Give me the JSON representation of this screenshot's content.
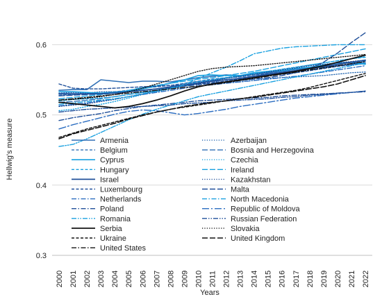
{
  "chart_data": {
    "type": "line",
    "title": "",
    "xlabel": "Years",
    "ylabel": "Hellwig's measure",
    "ylim": [
      0.3,
      0.63
    ],
    "yticks": [
      "0.3",
      "0.4",
      "0.5",
      "0.6"
    ],
    "ytick_values": [
      0.3,
      0.4,
      0.5,
      0.6
    ],
    "grid": "horizontal",
    "legend_position": "inside-bottom-left",
    "x": [
      "2000",
      "2001",
      "2002",
      "2003",
      "2004",
      "2005",
      "2006",
      "2007",
      "2008",
      "2009",
      "2010",
      "2011",
      "2012",
      "2013",
      "2014",
      "2015",
      "2016",
      "2017",
      "2018",
      "2019",
      "2020",
      "2021",
      "2022"
    ],
    "series": [
      {
        "name": "Armenia",
        "color": "#2f6fb5",
        "dash": "solid",
        "width": 1.6,
        "values": [
          0.535,
          0.536,
          0.536,
          0.55,
          0.548,
          0.546,
          0.548,
          0.548,
          0.547,
          0.55,
          0.553,
          0.555,
          0.557,
          0.556,
          0.558,
          0.56,
          0.562,
          0.565,
          0.567,
          0.568,
          0.57,
          0.572,
          0.574
        ]
      },
      {
        "name": "Azerbaijan",
        "color": "#2f6fb5",
        "dash": "dot",
        "width": 1.4,
        "values": [
          0.531,
          0.532,
          0.531,
          0.533,
          0.533,
          0.534,
          0.535,
          0.537,
          0.539,
          0.544,
          0.548,
          0.548,
          0.546,
          0.547,
          0.549,
          0.552,
          0.553,
          0.554,
          0.555,
          0.556,
          0.558,
          0.56,
          0.561
        ]
      },
      {
        "name": "Belgium",
        "color": "#2f6fb5",
        "dash": "short",
        "width": 1.4,
        "values": [
          0.528,
          0.529,
          0.53,
          0.531,
          0.533,
          0.535,
          0.538,
          0.54,
          0.542,
          0.545,
          0.548,
          0.551,
          0.553,
          0.554,
          0.557,
          0.559,
          0.561,
          0.563,
          0.565,
          0.567,
          0.569,
          0.571,
          0.573
        ]
      },
      {
        "name": "Bosnia and Herzegovina",
        "color": "#2f6fb5",
        "dash": "long",
        "width": 1.4,
        "values": [
          0.518,
          0.519,
          0.521,
          0.523,
          0.526,
          0.529,
          0.532,
          0.535,
          0.538,
          0.541,
          0.545,
          0.548,
          0.55,
          0.552,
          0.555,
          0.557,
          0.56,
          0.563,
          0.566,
          0.569,
          0.572,
          0.575,
          0.577
        ]
      },
      {
        "name": "Cyprus",
        "color": "#18a0e0",
        "dash": "solid",
        "width": 1.6,
        "values": [
          0.533,
          0.533,
          0.532,
          0.531,
          0.532,
          0.534,
          0.537,
          0.541,
          0.545,
          0.55,
          0.556,
          0.557,
          0.556,
          0.556,
          0.56,
          0.562,
          0.563,
          0.566,
          0.568,
          0.571,
          0.574,
          0.575,
          0.572
        ]
      },
      {
        "name": "Czechia",
        "color": "#18a0e0",
        "dash": "dot",
        "width": 1.4,
        "values": [
          0.506,
          0.508,
          0.512,
          0.515,
          0.519,
          0.524,
          0.529,
          0.533,
          0.537,
          0.541,
          0.545,
          0.549,
          0.552,
          0.555,
          0.558,
          0.561,
          0.565,
          0.568,
          0.571,
          0.574,
          0.577,
          0.58,
          0.583
        ]
      },
      {
        "name": "Hungary",
        "color": "#18a0e0",
        "dash": "short",
        "width": 1.4,
        "values": [
          0.52,
          0.522,
          0.523,
          0.524,
          0.526,
          0.529,
          0.532,
          0.535,
          0.539,
          0.543,
          0.547,
          0.55,
          0.553,
          0.556,
          0.559,
          0.562,
          0.565,
          0.568,
          0.571,
          0.574,
          0.577,
          0.58,
          0.582
        ]
      },
      {
        "name": "Ireland",
        "color": "#18a0e0",
        "dash": "long",
        "width": 1.4,
        "values": [
          0.523,
          0.525,
          0.527,
          0.529,
          0.531,
          0.535,
          0.539,
          0.542,
          0.545,
          0.548,
          0.551,
          0.553,
          0.556,
          0.559,
          0.562,
          0.566,
          0.57,
          0.574,
          0.578,
          0.582,
          0.586,
          0.59,
          0.594
        ]
      },
      {
        "name": "Israel",
        "color": "#1f4f99",
        "dash": "solid",
        "width": 1.8,
        "values": [
          0.53,
          0.53,
          0.53,
          0.53,
          0.531,
          0.533,
          0.535,
          0.537,
          0.54,
          0.543,
          0.545,
          0.548,
          0.55,
          0.552,
          0.555,
          0.558,
          0.56,
          0.563,
          0.566,
          0.569,
          0.572,
          0.575,
          0.578
        ]
      },
      {
        "name": "Kazakhstan",
        "color": "#1f4f99",
        "dash": "dot",
        "width": 1.4,
        "values": [
          0.512,
          0.514,
          0.516,
          0.519,
          0.522,
          0.526,
          0.53,
          0.534,
          0.538,
          0.542,
          0.546,
          0.549,
          0.552,
          0.555,
          0.558,
          0.561,
          0.564,
          0.567,
          0.57,
          0.572,
          0.574,
          0.576,
          0.578
        ]
      },
      {
        "name": "Luxembourg",
        "color": "#1f4f99",
        "dash": "short",
        "width": 1.4,
        "values": [
          0.544,
          0.538,
          0.537,
          0.537,
          0.538,
          0.539,
          0.54,
          0.541,
          0.542,
          0.543,
          0.544,
          0.546,
          0.548,
          0.551,
          0.554,
          0.556,
          0.558,
          0.56,
          0.563,
          0.566,
          0.569,
          0.573,
          0.576
        ]
      },
      {
        "name": "Malta",
        "color": "#1f4f99",
        "dash": "long",
        "width": 1.4,
        "values": [
          0.527,
          0.528,
          0.529,
          0.53,
          0.531,
          0.533,
          0.535,
          0.537,
          0.539,
          0.541,
          0.543,
          0.545,
          0.547,
          0.549,
          0.551,
          0.553,
          0.556,
          0.56,
          0.566,
          0.575,
          0.588,
          0.603,
          0.617
        ]
      },
      {
        "name": "Netherlands",
        "color": "#2a6cc0",
        "dash": "dashdot",
        "width": 1.4,
        "values": [
          0.513,
          0.515,
          0.517,
          0.52,
          0.523,
          0.526,
          0.529,
          0.532,
          0.535,
          0.538,
          0.541,
          0.543,
          0.545,
          0.547,
          0.549,
          0.551,
          0.553,
          0.555,
          0.558,
          0.561,
          0.564,
          0.567,
          0.57
        ]
      },
      {
        "name": "North Macedonia",
        "color": "#18a0e0",
        "dash": "dashdot",
        "width": 1.4,
        "values": [
          0.515,
          0.517,
          0.519,
          0.521,
          0.523,
          0.526,
          0.53,
          0.534,
          0.538,
          0.543,
          0.552,
          0.56,
          0.568,
          0.577,
          0.587,
          0.591,
          0.595,
          0.597,
          0.598,
          0.599,
          0.6,
          0.6,
          0.6
        ]
      },
      {
        "name": "Poland",
        "color": "#1f4f99",
        "dash": "dashdot",
        "width": 1.4,
        "values": [
          0.492,
          0.496,
          0.499,
          0.502,
          0.506,
          0.509,
          0.512,
          0.514,
          0.516,
          0.518,
          0.52,
          0.521,
          0.522,
          0.523,
          0.524,
          0.525,
          0.527,
          0.528,
          0.529,
          0.53,
          0.531,
          0.532,
          0.533
        ]
      },
      {
        "name": "Republic of Moldova",
        "color": "#2a6cc0",
        "dash": "longdashdot",
        "width": 1.4,
        "values": [
          0.48,
          0.486,
          0.491,
          0.496,
          0.501,
          0.505,
          0.507,
          0.506,
          0.503,
          0.5,
          0.502,
          0.505,
          0.508,
          0.512,
          0.515,
          0.518,
          0.521,
          0.524,
          0.526,
          0.528,
          0.53,
          0.532,
          0.534
        ]
      },
      {
        "name": "Romania",
        "color": "#18a0e0",
        "dash": "dashdotdot",
        "width": 1.4,
        "values": [
          0.455,
          0.458,
          0.466,
          0.475,
          0.484,
          0.493,
          0.501,
          0.508,
          0.514,
          0.52,
          0.526,
          0.53,
          0.534,
          0.538,
          0.542,
          0.546,
          0.55,
          0.554,
          0.558,
          0.562,
          0.566,
          0.57,
          0.574
        ]
      },
      {
        "name": "Russian Federation",
        "color": "#1f4f99",
        "dash": "dashdotdot",
        "width": 1.4,
        "values": [
          0.504,
          0.506,
          0.508,
          0.509,
          0.51,
          0.511,
          0.512,
          0.513,
          0.514,
          0.516,
          0.517,
          0.518,
          0.52,
          0.521,
          0.522,
          0.523,
          0.525,
          0.526,
          0.528,
          0.529,
          0.531,
          0.532,
          0.534
        ]
      },
      {
        "name": "Serbia",
        "color": "#111111",
        "dash": "solid",
        "width": 1.8,
        "values": [
          0.518,
          0.516,
          0.514,
          0.512,
          0.51,
          0.512,
          0.516,
          0.521,
          0.527,
          0.534,
          0.54,
          0.544,
          0.547,
          0.55,
          0.553,
          0.556,
          0.559,
          0.562,
          0.566,
          0.57,
          0.575,
          0.58,
          0.585
        ]
      },
      {
        "name": "Slovakia",
        "color": "#111111",
        "dash": "dot",
        "width": 1.4,
        "values": [
          0.521,
          0.522,
          0.524,
          0.526,
          0.529,
          0.533,
          0.538,
          0.544,
          0.55,
          0.556,
          0.562,
          0.566,
          0.568,
          0.569,
          0.57,
          0.572,
          0.574,
          0.576,
          0.578,
          0.58,
          0.582,
          0.584,
          0.586
        ]
      },
      {
        "name": "Ukraine",
        "color": "#111111",
        "dash": "short",
        "width": 1.4,
        "values": [
          0.468,
          0.474,
          0.48,
          0.485,
          0.49,
          0.495,
          0.5,
          0.504,
          0.508,
          0.511,
          0.514,
          0.517,
          0.52,
          0.523,
          0.526,
          0.529,
          0.532,
          0.535,
          0.539,
          0.544,
          0.549,
          0.554,
          0.559
        ]
      },
      {
        "name": "United Kingdom",
        "color": "#111111",
        "dash": "long",
        "width": 1.6,
        "values": [
          0.466,
          0.473,
          0.478,
          0.483,
          0.488,
          0.494,
          0.499,
          0.504,
          0.508,
          0.512,
          0.515,
          0.518,
          0.52,
          0.523,
          0.525,
          0.528,
          0.531,
          0.534,
          0.537,
          0.54,
          0.544,
          0.55,
          0.556
        ]
      },
      {
        "name": "United States",
        "color": "#111111",
        "dash": "dashdot",
        "width": 1.4,
        "values": [
          0.521,
          0.523,
          0.525,
          0.527,
          0.529,
          0.531,
          0.533,
          0.535,
          0.537,
          0.539,
          0.541,
          0.543,
          0.546,
          0.549,
          0.552,
          0.555,
          0.558,
          0.561,
          0.564,
          0.567,
          0.57,
          0.573,
          0.576
        ]
      }
    ]
  }
}
